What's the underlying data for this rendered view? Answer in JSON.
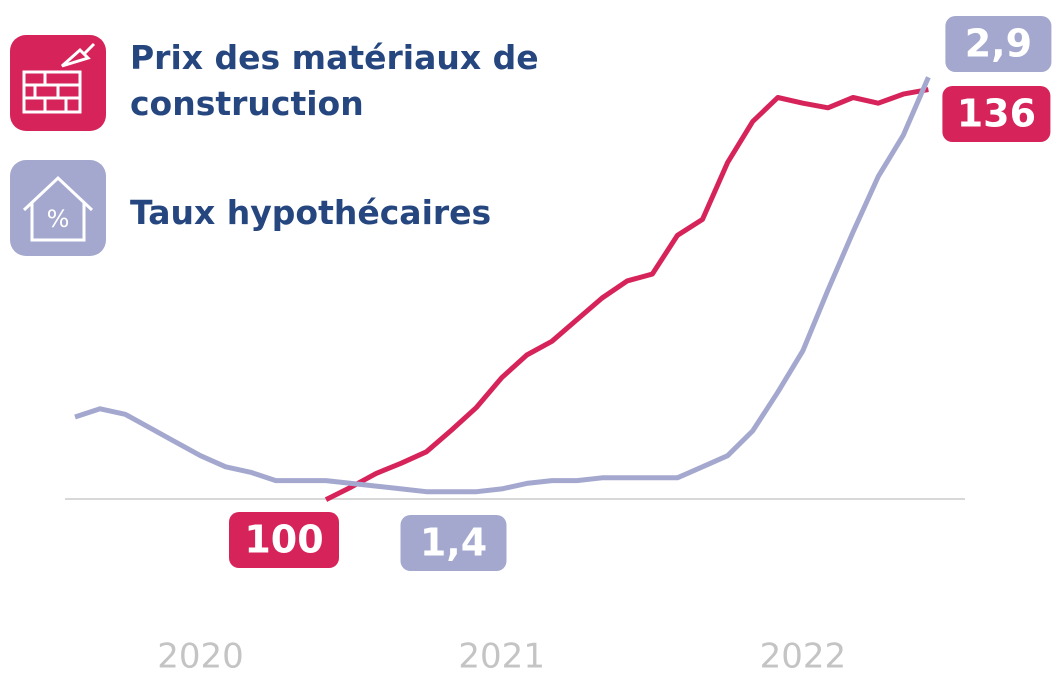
{
  "chart_data": {
    "type": "line",
    "categories": [
      null,
      null,
      null,
      null,
      null,
      "2020",
      null,
      null,
      null,
      null,
      null,
      null,
      null,
      null,
      null,
      null,
      null,
      "2021",
      null,
      null,
      null,
      null,
      null,
      null,
      null,
      null,
      null,
      null,
      null,
      "2022",
      null,
      null,
      null,
      null,
      null
    ],
    "ylim": [
      99,
      140
    ],
    "y2lim": [
      1.33,
      3.02
    ],
    "series": [
      {
        "name": "Prix des matériaux de construction",
        "color": "#d6245b",
        "values": [
          null,
          null,
          null,
          null,
          null,
          null,
          null,
          null,
          null,
          null,
          100,
          101.1,
          102.3,
          103.2,
          104.2,
          106.1,
          108.1,
          110.7,
          112.7,
          113.9,
          115.8,
          117.7,
          119.2,
          119.8,
          123.2,
          124.6,
          129.6,
          133.2,
          135.3,
          134.8,
          134.4,
          135.3,
          134.8,
          135.6,
          136
        ]
      },
      {
        "name": "Taux hypothécaires",
        "color": "#a4a8cf",
        "axis": "y2",
        "values": [
          1.67,
          1.7,
          1.68,
          1.63,
          1.58,
          1.53,
          1.49,
          1.47,
          1.44,
          1.44,
          1.44,
          1.43,
          1.42,
          1.41,
          1.4,
          1.4,
          1.4,
          1.41,
          1.43,
          1.44,
          1.44,
          1.45,
          1.45,
          1.45,
          1.45,
          1.49,
          1.53,
          1.62,
          1.76,
          1.91,
          2.13,
          2.34,
          2.54,
          2.69,
          2.9
        ],
        "value_labels": [
          null,
          null,
          null,
          null,
          null,
          null,
          null,
          null,
          null,
          null,
          null,
          null,
          null,
          null,
          null,
          "1,4",
          null,
          null,
          null,
          null,
          null,
          null,
          null,
          null,
          null,
          null,
          null,
          null,
          null,
          null,
          null,
          null,
          null,
          null,
          "2,9"
        ]
      }
    ]
  }
}
